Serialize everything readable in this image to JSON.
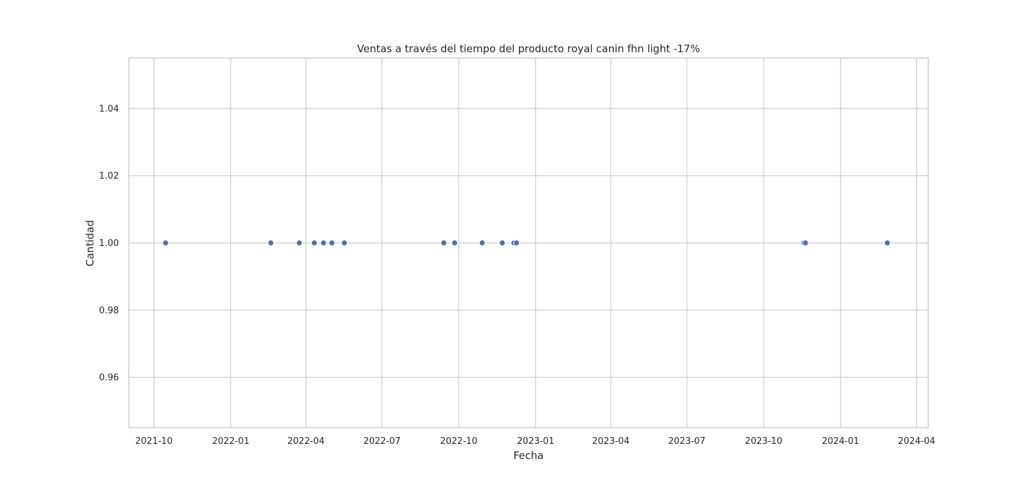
{
  "chart_data": {
    "type": "scatter",
    "title": "Ventas a través del tiempo del producto royal canin fhn light -17%",
    "xlabel": "Fecha",
    "ylabel": "Cantidad",
    "x_is_date": true,
    "xlim": [
      "2021-09-01",
      "2024-04-15"
    ],
    "ylim": [
      0.945,
      1.055
    ],
    "x_ticks": [
      "2021-10-01",
      "2022-01-01",
      "2022-04-01",
      "2022-07-01",
      "2022-10-01",
      "2023-01-01",
      "2023-04-01",
      "2023-07-01",
      "2023-10-01",
      "2024-01-01",
      "2024-04-01"
    ],
    "x_tick_labels": [
      "2021-10",
      "2022-01",
      "2022-04",
      "2022-07",
      "2022-10",
      "2023-01",
      "2023-04",
      "2023-07",
      "2023-10",
      "2024-01",
      "2024-04"
    ],
    "y_ticks": [
      0.96,
      0.98,
      1.0,
      1.02,
      1.04
    ],
    "y_tick_labels": [
      "0.96",
      "0.98",
      "1.00",
      "1.02",
      "1.04"
    ],
    "grid": true,
    "color": "#4c72b0",
    "points": [
      {
        "x": "2021-10-15",
        "y": 1
      },
      {
        "x": "2022-02-18",
        "y": 1
      },
      {
        "x": "2022-03-24",
        "y": 1
      },
      {
        "x": "2022-04-11",
        "y": 1
      },
      {
        "x": "2022-04-22",
        "y": 1
      },
      {
        "x": "2022-05-02",
        "y": 1
      },
      {
        "x": "2022-05-17",
        "y": 1
      },
      {
        "x": "2022-09-13",
        "y": 1
      },
      {
        "x": "2022-09-26",
        "y": 1
      },
      {
        "x": "2022-10-29",
        "y": 1
      },
      {
        "x": "2022-11-22",
        "y": 1
      },
      {
        "x": "2022-12-06",
        "y": 1
      },
      {
        "x": "2022-12-09",
        "y": 1
      },
      {
        "x": "2023-11-18",
        "y": 1
      },
      {
        "x": "2023-11-20",
        "y": 1
      },
      {
        "x": "2024-02-26",
        "y": 1
      }
    ]
  }
}
